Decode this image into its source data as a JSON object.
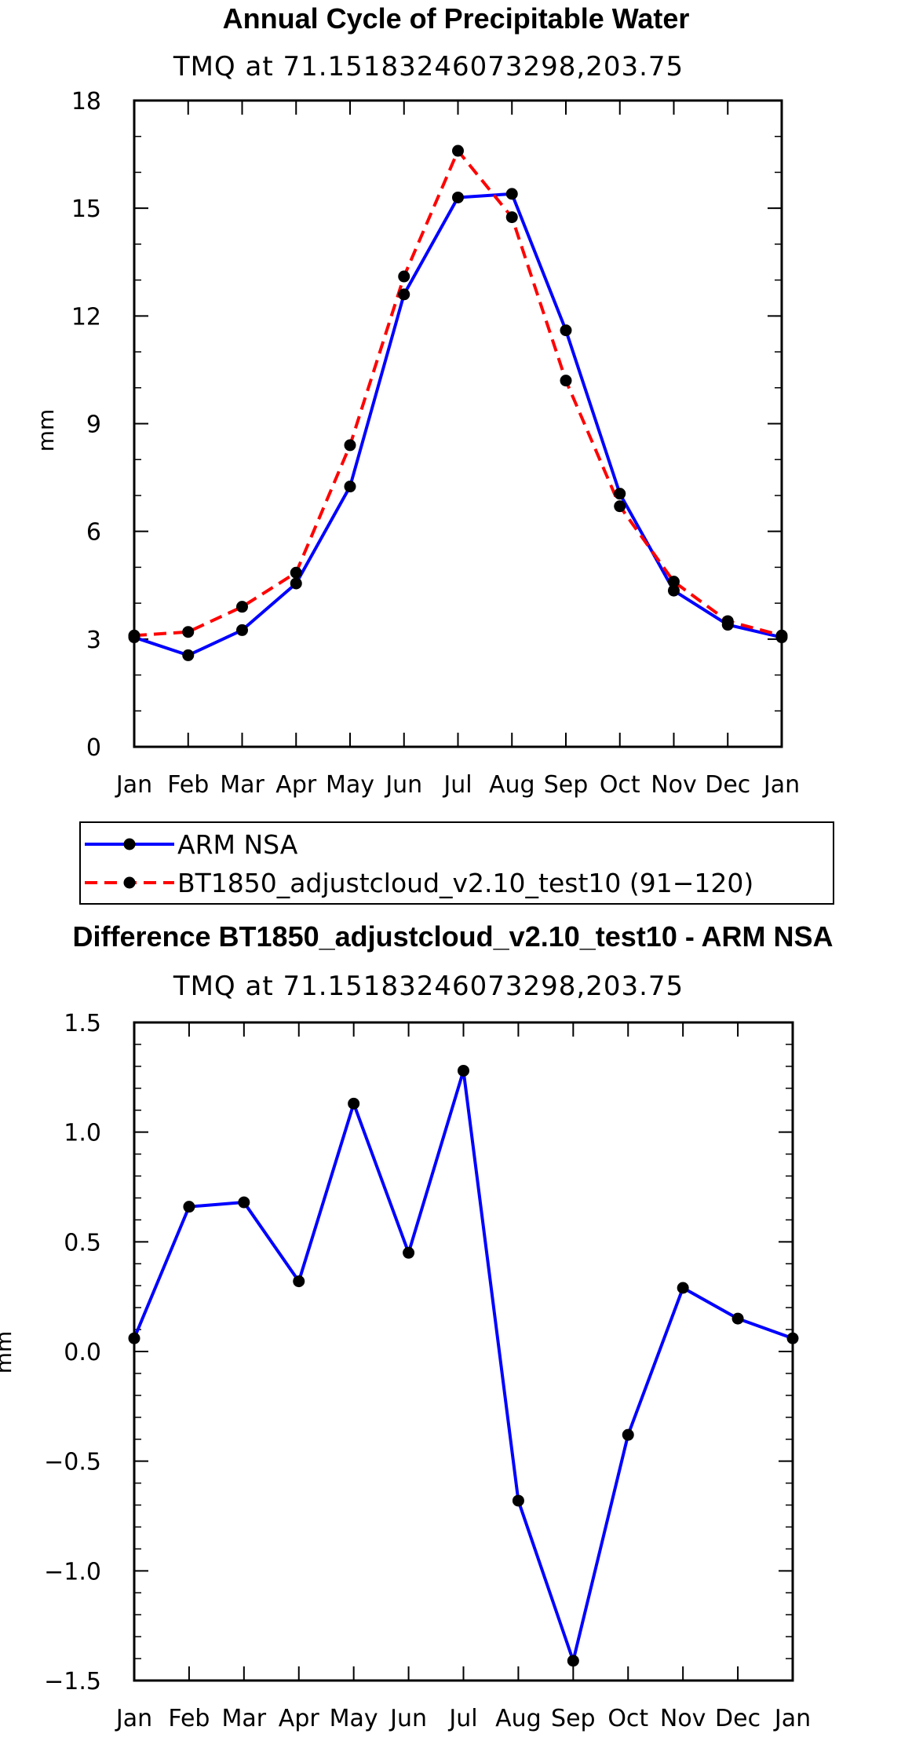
{
  "chart_data": [
    {
      "type": "line",
      "title": "Annual Cycle of Precipitable Water",
      "subtitle": "TMQ at 71.15183246073298,203.75",
      "xlabel": "",
      "ylabel": "mm",
      "categories": [
        "Jan",
        "Feb",
        "Mar",
        "Apr",
        "May",
        "Jun",
        "Jul",
        "Aug",
        "Sep",
        "Oct",
        "Nov",
        "Dec",
        "Jan"
      ],
      "ylim": [
        0,
        18
      ],
      "yticks": [
        0,
        3,
        6,
        9,
        12,
        15,
        18
      ],
      "ytick_labels": [
        "0",
        "3",
        "6",
        "9",
        "12",
        "15",
        "18"
      ],
      "legend_placement": "below",
      "series": [
        {
          "name": "ARM NSA",
          "color": "#0000ff",
          "dash": "solid",
          "values": [
            3.05,
            2.55,
            3.25,
            4.55,
            7.25,
            12.6,
            15.3,
            15.4,
            11.6,
            7.05,
            4.35,
            3.4,
            3.05
          ]
        },
        {
          "name": "BT1850_adjustcloud_v2.10_test10 (91−120)",
          "color": "#ff0000",
          "dash": "dashed",
          "values": [
            3.1,
            3.2,
            3.9,
            4.85,
            8.4,
            13.1,
            16.6,
            14.75,
            10.2,
            6.7,
            4.6,
            3.5,
            3.1
          ]
        }
      ]
    },
    {
      "type": "line",
      "title": "Difference BT1850_adjustcloud_v2.10_test10 - ARM NSA",
      "subtitle": "TMQ at 71.15183246073298,203.75",
      "xlabel": "",
      "ylabel": "mm",
      "categories": [
        "Jan",
        "Feb",
        "Mar",
        "Apr",
        "May",
        "Jun",
        "Jul",
        "Aug",
        "Sep",
        "Oct",
        "Nov",
        "Dec",
        "Jan"
      ],
      "ylim": [
        -1.5,
        1.5
      ],
      "yticks": [
        -1.5,
        -1.0,
        -0.5,
        0.0,
        0.5,
        1.0,
        1.5
      ],
      "ytick_labels": [
        "−1.5",
        "−1.0",
        "−0.5",
        "0.0",
        "0.5",
        "1.0",
        "1.5"
      ],
      "series": [
        {
          "name": "Difference",
          "color": "#0000ff",
          "dash": "solid",
          "values": [
            0.06,
            0.66,
            0.68,
            0.32,
            1.13,
            0.45,
            1.28,
            -0.68,
            -1.41,
            -0.38,
            0.29,
            0.15,
            0.06
          ]
        }
      ]
    }
  ]
}
